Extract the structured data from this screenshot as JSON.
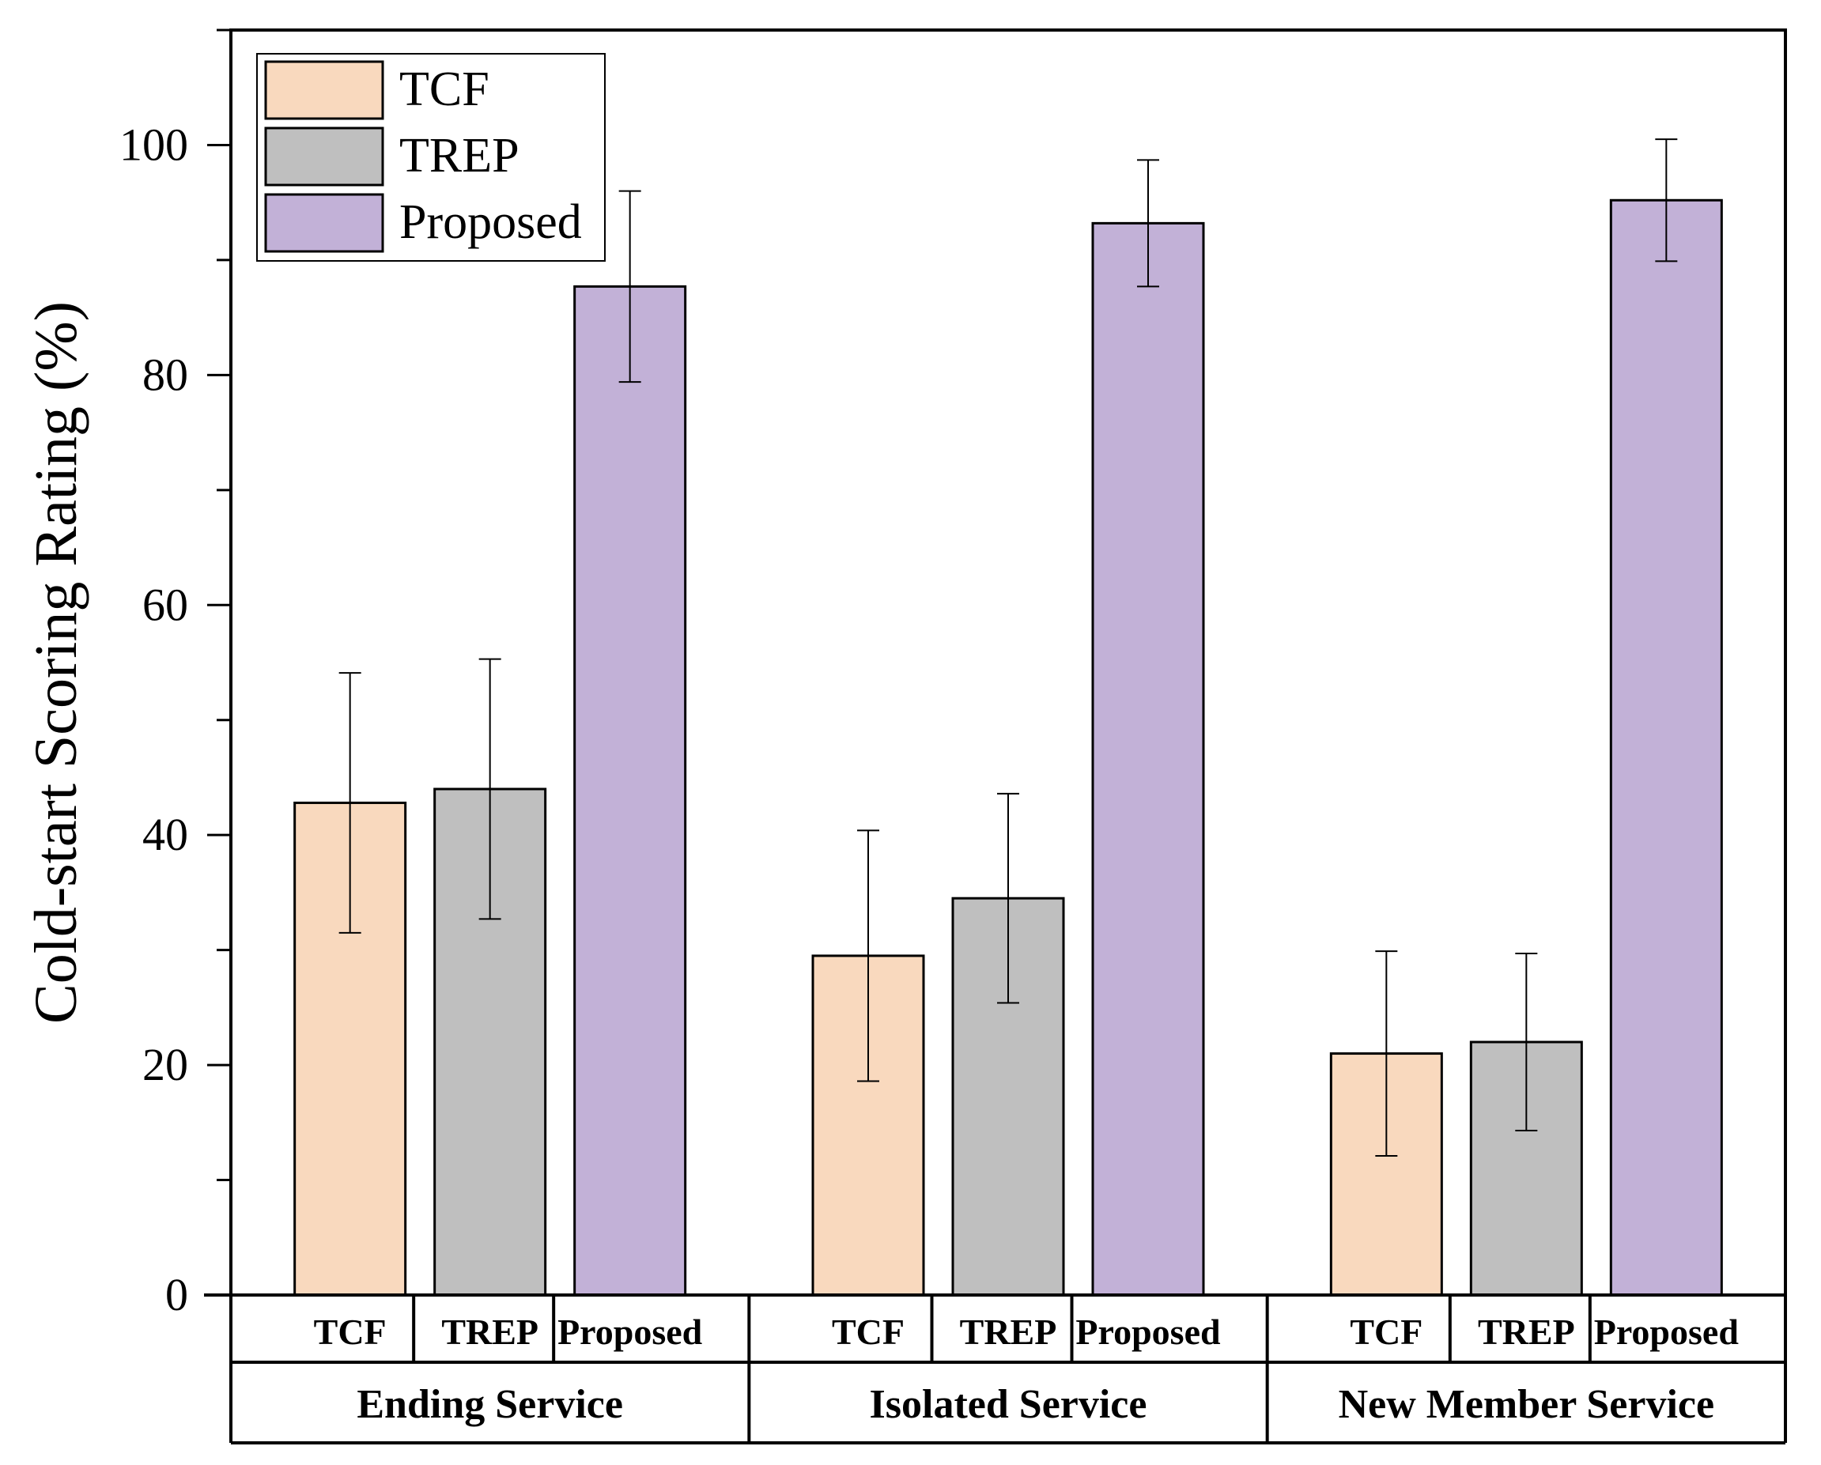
{
  "chart_data": {
    "type": "bar",
    "title": "",
    "xlabel": "",
    "ylabel": "Cold-start Scoring Rating (%)",
    "ylim": [
      0,
      110
    ],
    "yticks": [
      0,
      20,
      40,
      60,
      80,
      100
    ],
    "grid": false,
    "legend_position": "top-left",
    "groups": [
      "Ending Service",
      "Isolated Service",
      "New Member Service"
    ],
    "series": [
      {
        "name": "TCF",
        "color": "#F9D9BE",
        "values": [
          42.8,
          29.5,
          21.0
        ],
        "errors": [
          11.3,
          10.9,
          8.9
        ]
      },
      {
        "name": "TREP",
        "color": "#BFBFBF",
        "values": [
          44.0,
          34.5,
          22.0
        ],
        "errors": [
          11.3,
          9.1,
          7.7
        ]
      },
      {
        "name": "Proposed",
        "color": "#C2B1D7",
        "values": [
          87.7,
          93.2,
          95.2
        ],
        "errors": [
          8.3,
          5.5,
          5.3
        ]
      }
    ],
    "category_labels": [
      [
        "TCF",
        "TREP",
        "Proposed"
      ],
      [
        "TCF",
        "TREP",
        "Proposed"
      ],
      [
        "TCF",
        "TREP",
        "Proposed"
      ]
    ]
  }
}
